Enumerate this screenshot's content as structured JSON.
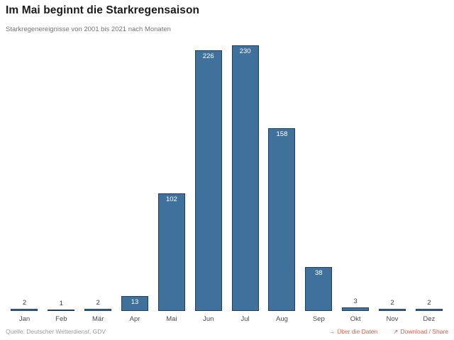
{
  "header": {
    "title": "Im Mai beginnt die Starkregensaison",
    "subtitle": "Starkregenereignisse von 2001 bis 2021 nach Monaten"
  },
  "chart_data": {
    "type": "bar",
    "title": "Im Mai beginnt die Starkregensaison",
    "subtitle": "Starkregenereignisse von 2001 bis 2021 nach Monaten",
    "categories": [
      "Jan",
      "Feb",
      "Mär",
      "Apr",
      "Mai",
      "Jun",
      "Jul",
      "Aug",
      "Sep",
      "Okt",
      "Nov",
      "Dez"
    ],
    "values": [
      2,
      1,
      2,
      13,
      102,
      226,
      230,
      158,
      38,
      3,
      2,
      2
    ],
    "xlabel": "",
    "ylabel": "",
    "ylim": [
      0,
      230
    ],
    "grid": false,
    "legend": false,
    "value_labels": true,
    "bar_color": "#40719c",
    "bar_border_color": "#1f3f5e",
    "inside_label_color": "#ffffff",
    "outside_label_color": "#3a3a3a"
  },
  "footer": {
    "source": "Quelle: Deutscher Wetterdienst, GDV",
    "link_color": "#e45c45",
    "links": [
      {
        "icon": "→",
        "icon_name": "right-arrow-icon",
        "label": "Über die Daten"
      },
      {
        "icon": "↗",
        "icon_name": "external-link-icon",
        "label": "Download / Share"
      }
    ]
  }
}
